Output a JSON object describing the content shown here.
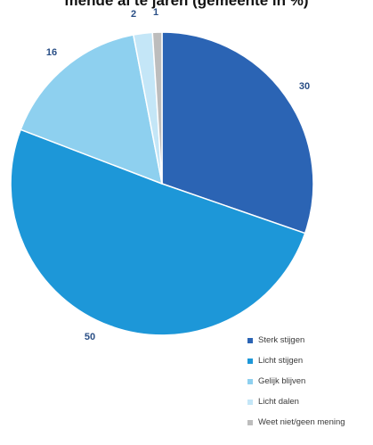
{
  "title": "mende al te jaren (gemeente in %)",
  "chart_data": {
    "type": "pie",
    "categories": [
      "Sterk stijgen",
      "Licht stijgen",
      "Gelijk blijven",
      "Licht dalen",
      "Weet niet/geen mening"
    ],
    "values": [
      30,
      50,
      16,
      2,
      1
    ],
    "labels": [
      "30",
      "50",
      "16",
      "2",
      "1"
    ],
    "colors": [
      "#2b64b4",
      "#1d97d8",
      "#8ed0ef",
      "#c4e6f7",
      "#bdbdbd"
    ]
  }
}
